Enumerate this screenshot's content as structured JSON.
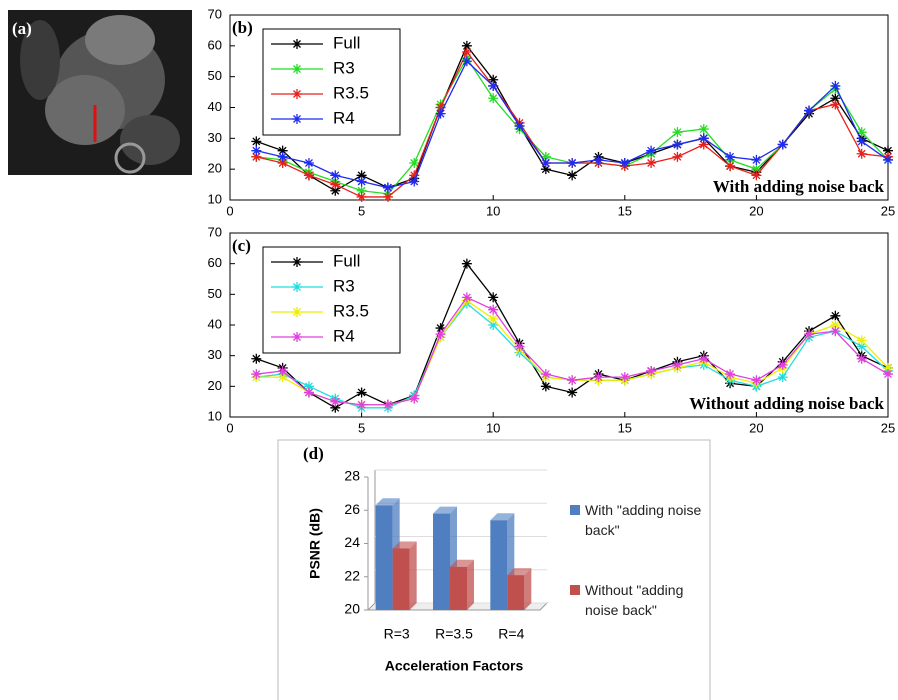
{
  "image_panel": {
    "label": "(a)"
  },
  "chart_data": [
    {
      "type": "line",
      "panel_label": "(b)",
      "annotation": "With adding noise back",
      "x": [
        1,
        2,
        3,
        4,
        5,
        6,
        7,
        8,
        9,
        10,
        11,
        12,
        13,
        14,
        15,
        16,
        17,
        18,
        19,
        20,
        21,
        22,
        23,
        24,
        25
      ],
      "series": [
        {
          "name": "Full",
          "color": "#000000",
          "values": [
            29,
            26,
            18,
            13,
            18,
            14,
            17,
            40,
            60,
            49,
            34,
            20,
            18,
            24,
            22,
            25,
            28,
            30,
            21,
            19,
            28,
            38,
            43,
            30,
            26
          ]
        },
        {
          "name": "R3",
          "color": "#22dd22",
          "values": [
            24,
            23,
            19,
            16,
            13,
            12,
            22,
            41,
            56,
            43,
            33,
            24,
            22,
            22,
            21,
            25,
            32,
            33,
            23,
            20,
            28,
            39,
            46,
            32,
            23
          ]
        },
        {
          "name": "R3.5",
          "color": "#e8201c",
          "values": [
            24,
            22,
            18,
            15,
            11,
            11,
            18,
            40,
            58,
            47,
            35,
            22,
            22,
            22,
            21,
            22,
            24,
            28,
            21,
            18,
            28,
            39,
            41,
            25,
            24
          ]
        },
        {
          "name": "R4",
          "color": "#1f2cf0",
          "values": [
            26,
            24,
            22,
            18,
            16,
            14,
            16,
            38,
            55,
            47,
            34,
            22,
            22,
            23,
            22,
            26,
            28,
            30,
            24,
            23,
            28,
            39,
            47,
            29,
            23
          ]
        }
      ],
      "xlim": [
        0,
        25
      ],
      "ylim": [
        10,
        70
      ],
      "xticks": [
        0,
        5,
        10,
        15,
        20,
        25
      ],
      "yticks": [
        10,
        20,
        30,
        40,
        50,
        60,
        70
      ],
      "legend": "upper left"
    },
    {
      "type": "line",
      "panel_label": "(c)",
      "annotation": "Without adding noise back",
      "x": [
        1,
        2,
        3,
        4,
        5,
        6,
        7,
        8,
        9,
        10,
        11,
        12,
        13,
        14,
        15,
        16,
        17,
        18,
        19,
        20,
        21,
        22,
        23,
        24,
        25
      ],
      "series": [
        {
          "name": "Full",
          "color": "#000000",
          "values": [
            29,
            26,
            18,
            13,
            18,
            14,
            17,
            39,
            60,
            49,
            34,
            20,
            18,
            24,
            22,
            25,
            28,
            30,
            21,
            20,
            28,
            38,
            43,
            30,
            26
          ]
        },
        {
          "name": "R3",
          "color": "#22dddd",
          "values": [
            23,
            24,
            20,
            16,
            13,
            13,
            17,
            36,
            47,
            40,
            31,
            23,
            22,
            22,
            22,
            24,
            26,
            27,
            22,
            20,
            23,
            36,
            38,
            33,
            25
          ]
        },
        {
          "name": "R3.5",
          "color": "#eeee00",
          "values": [
            23,
            23,
            18,
            15,
            14,
            14,
            16,
            36,
            48,
            42,
            32,
            23,
            22,
            22,
            22,
            24,
            26,
            28,
            23,
            21,
            26,
            37,
            40,
            35,
            26
          ]
        },
        {
          "name": "R4",
          "color": "#e040e0",
          "values": [
            24,
            25,
            18,
            15,
            14,
            14,
            16,
            37,
            49,
            45,
            33,
            24,
            22,
            23,
            23,
            25,
            27,
            29,
            24,
            22,
            27,
            37,
            38,
            29,
            24
          ]
        }
      ],
      "xlim": [
        0,
        25
      ],
      "ylim": [
        10,
        70
      ],
      "xticks": [
        0,
        5,
        10,
        15,
        20,
        25
      ],
      "yticks": [
        10,
        20,
        30,
        40,
        50,
        60,
        70
      ],
      "legend": "upper left"
    },
    {
      "type": "bar",
      "panel_label": "(d)",
      "y_label": "PSNR (dB)",
      "x_label": "Acceleration Factors",
      "categories": [
        "R=3",
        "R=3.5",
        "R=4"
      ],
      "series": [
        {
          "name": "With \"adding noise back\"",
          "color": "#4f7ec1",
          "values": [
            26.3,
            25.8,
            25.4
          ]
        },
        {
          "name": "Without \"adding noise back\"",
          "color": "#c0504d",
          "values": [
            23.7,
            22.6,
            22.1
          ]
        }
      ],
      "ylim": [
        20,
        28
      ],
      "yticks": [
        20,
        22,
        24,
        26,
        28
      ],
      "legend": "right"
    }
  ]
}
